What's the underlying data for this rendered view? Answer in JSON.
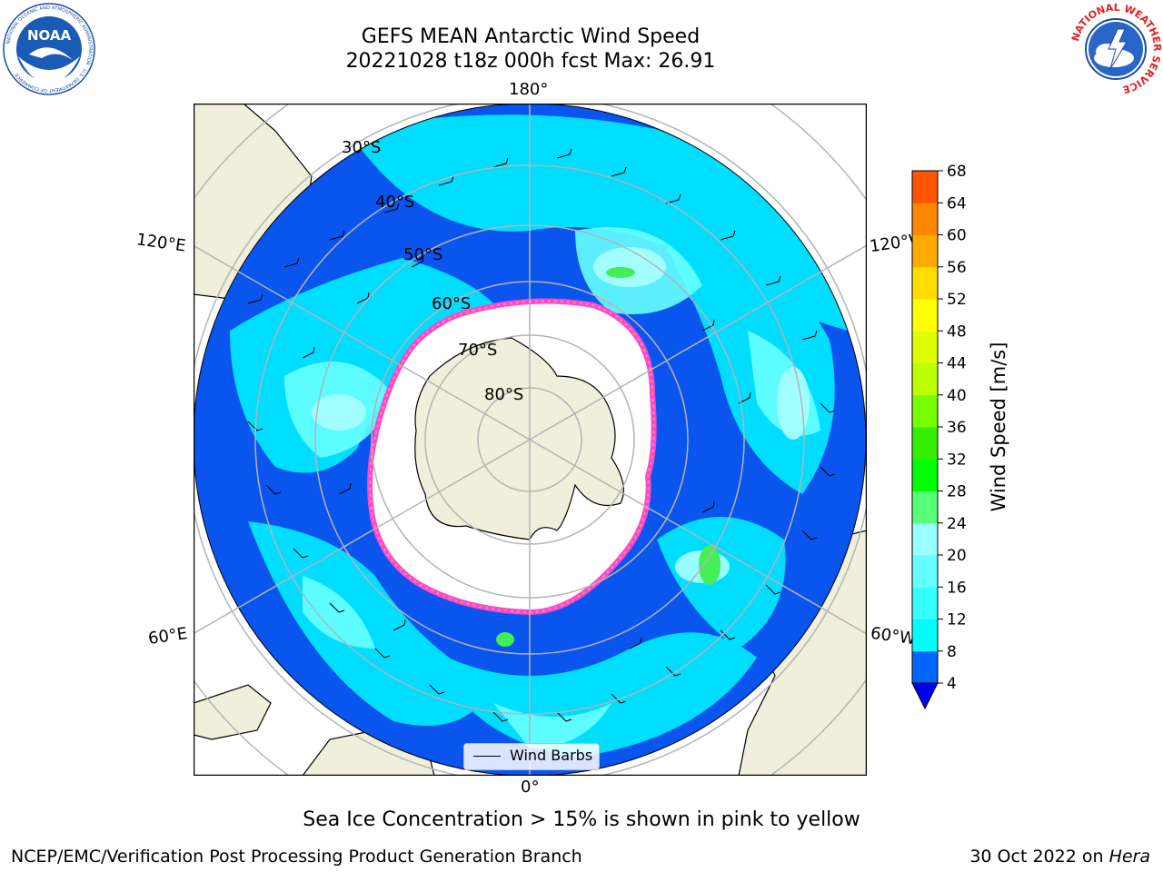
{
  "header": {
    "title_line1": "GEFS MEAN Antarctic Wind Speed",
    "title_line2": "20221028 t18z 000h fcst   Max: 26.91"
  },
  "logos": {
    "left": "noaa-logo",
    "left_text": "NOAA",
    "left_ring_text": "NATIONAL OCEANIC AND ATMOSPHERIC ADMINISTRATION · U.S. DEPARTMENT OF COMMERCE",
    "right": "nws-logo",
    "right_ring_text": "NATIONAL WEATHER SERVICE"
  },
  "map": {
    "projection": "south-polar-stereographic",
    "longitude_labels": {
      "top": "180°",
      "bottom": "0°",
      "upper_left": "120°E",
      "upper_right": "120°W",
      "lower_left": "60°E",
      "lower_right": "60°W"
    },
    "latitude_labels": [
      "30°S",
      "40°S",
      "50°S",
      "60°S",
      "70°S",
      "80°S"
    ],
    "legend_label": "Wind Barbs",
    "colors": {
      "land": "#efefdb",
      "sea_ice": "#ffffff",
      "ice_edge_pink": "#ff44dd",
      "ice_edge_orange": "#f5a442",
      "graticule": "#b4b4b4"
    }
  },
  "colorbar": {
    "label": "Wind Speed [m/s]",
    "ticks": [
      "4",
      "8",
      "12",
      "16",
      "20",
      "24",
      "28",
      "32",
      "36",
      "40",
      "44",
      "48",
      "52",
      "56",
      "60",
      "64",
      "68"
    ],
    "colors": [
      "#0066ff",
      "#00ffff",
      "#33ffff",
      "#66ffff",
      "#99ffff",
      "#55ff77",
      "#00ff00",
      "#33ee00",
      "#77ff00",
      "#bbff00",
      "#ddff00",
      "#ffff00",
      "#ffdd00",
      "#ffaa00",
      "#ff8800",
      "#ff5500",
      "#ff2200",
      "#ff0000"
    ],
    "under_color": "#0000ee"
  },
  "caption": "Sea Ice Concentration > 15% is shown in pink to yellow",
  "footer": {
    "left": "NCEP/EMC/Verification Post Processing Product Generation Branch",
    "right_prefix": "30 Oct 2022 on ",
    "right_host": "Hera"
  }
}
